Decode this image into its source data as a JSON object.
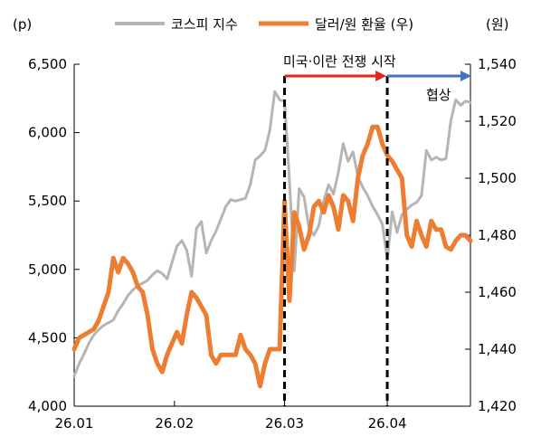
{
  "chart_data": {
    "type": "line",
    "left_unit": "(p)",
    "right_unit": "(원)",
    "x_ticks": [
      "26.01",
      "26.02",
      "26.03",
      "26.04"
    ],
    "y_left": {
      "lim": [
        4000,
        6500
      ],
      "ticks": [
        "4,000",
        "4,500",
        "5,000",
        "5,500",
        "6,000",
        "6,500"
      ],
      "tick_values": [
        4000,
        4500,
        5000,
        5500,
        6000,
        6500
      ]
    },
    "y_right": {
      "lim": [
        1420,
        1540
      ],
      "ticks": [
        "1,420",
        "1,440",
        "1,460",
        "1,480",
        "1,500",
        "1,520",
        "1,540"
      ],
      "tick_values": [
        1420,
        1440,
        1460,
        1480,
        1500,
        1520,
        1540
      ]
    },
    "legend": {
      "placement": "top"
    },
    "series": [
      {
        "name": "코스피 지수",
        "color": "#b5b5b5",
        "axis": "left",
        "x": [
          0,
          1,
          2,
          3,
          4,
          5,
          6,
          7,
          8,
          9,
          10,
          11,
          12,
          13,
          14,
          15,
          16,
          17,
          18,
          19,
          20,
          21,
          22,
          23,
          24,
          25,
          26,
          27,
          28,
          29,
          30,
          31,
          32,
          33,
          34,
          35,
          36,
          37,
          38,
          39,
          40,
          41,
          42,
          43,
          44,
          45,
          46,
          47,
          48,
          49,
          50,
          51,
          52,
          53,
          54,
          55,
          56,
          57,
          58,
          59,
          60,
          61,
          62,
          63,
          64,
          65,
          66,
          67,
          68,
          69,
          70,
          71,
          72,
          73,
          74,
          75,
          76,
          77,
          78,
          79,
          80,
          81
        ],
        "values": [
          4220,
          4310,
          4380,
          4460,
          4520,
          4560,
          4590,
          4610,
          4630,
          4700,
          4750,
          4810,
          4850,
          4880,
          4900,
          4920,
          4960,
          4990,
          4970,
          4930,
          5050,
          5170,
          5210,
          5140,
          4950,
          5300,
          5350,
          5120,
          5210,
          5280,
          5370,
          5460,
          5510,
          5500,
          5510,
          5520,
          5620,
          5800,
          5830,
          5870,
          6020,
          6300,
          6240,
          6230,
          5660,
          4990,
          5590,
          5530,
          5300,
          5250,
          5320,
          5500,
          5620,
          5550,
          5710,
          5920,
          5790,
          5860,
          5680,
          5600,
          5540,
          5460,
          5400,
          5330,
          5070,
          5420,
          5270,
          5400,
          5440,
          5470,
          5490,
          5540,
          5870,
          5800,
          5820,
          5800,
          5810,
          6090,
          6240,
          6200,
          6230,
          6220
        ]
      },
      {
        "name": "달러/원 환율 (우)",
        "color": "#ed7d31",
        "axis": "right",
        "x": [
          0,
          1,
          2,
          3,
          4,
          5,
          6,
          7,
          8,
          9,
          10,
          11,
          12,
          13,
          14,
          15,
          16,
          17,
          18,
          19,
          20,
          21,
          22,
          23,
          24,
          25,
          26,
          27,
          28,
          29,
          30,
          31,
          32,
          33,
          34,
          35,
          36,
          37,
          38,
          39,
          40,
          41,
          42,
          43,
          44,
          45,
          46,
          47,
          48,
          49,
          50,
          51,
          52,
          53,
          54,
          55,
          56,
          57,
          58,
          59,
          60,
          61,
          62,
          63,
          64,
          65,
          66,
          67,
          68,
          69,
          70,
          71,
          72,
          73,
          74,
          75,
          76,
          77,
          78,
          79,
          80,
          81
        ],
        "values": [
          1440,
          1444,
          1445,
          1446,
          1447,
          1450,
          1455,
          1460,
          1472,
          1467,
          1472,
          1470,
          1467,
          1462,
          1460,
          1452,
          1440,
          1435,
          1432,
          1438,
          1442,
          1446,
          1442,
          1452,
          1460,
          1458,
          1455,
          1452,
          1438,
          1435,
          1438,
          1438,
          1438,
          1438,
          1445,
          1440,
          1438,
          1435,
          1427,
          1435,
          1440,
          1440,
          1440,
          1492,
          1457,
          1488,
          1483,
          1475,
          1480,
          1490,
          1492,
          1488,
          1494,
          1490,
          1482,
          1494,
          1492,
          1485,
          1500,
          1508,
          1512,
          1518,
          1518,
          1512,
          1508,
          1506,
          1503,
          1500,
          1480,
          1476,
          1485,
          1480,
          1476,
          1485,
          1482,
          1482,
          1476,
          1475,
          1478,
          1480,
          1480,
          1478
        ]
      }
    ],
    "annotations": {
      "period1_label": "미국·이란 전쟁 시작",
      "period2_label": "협상",
      "period1_color": "#e8231f",
      "period2_color": "#4472c4",
      "vline_positions_x": [
        43,
        64
      ]
    }
  }
}
